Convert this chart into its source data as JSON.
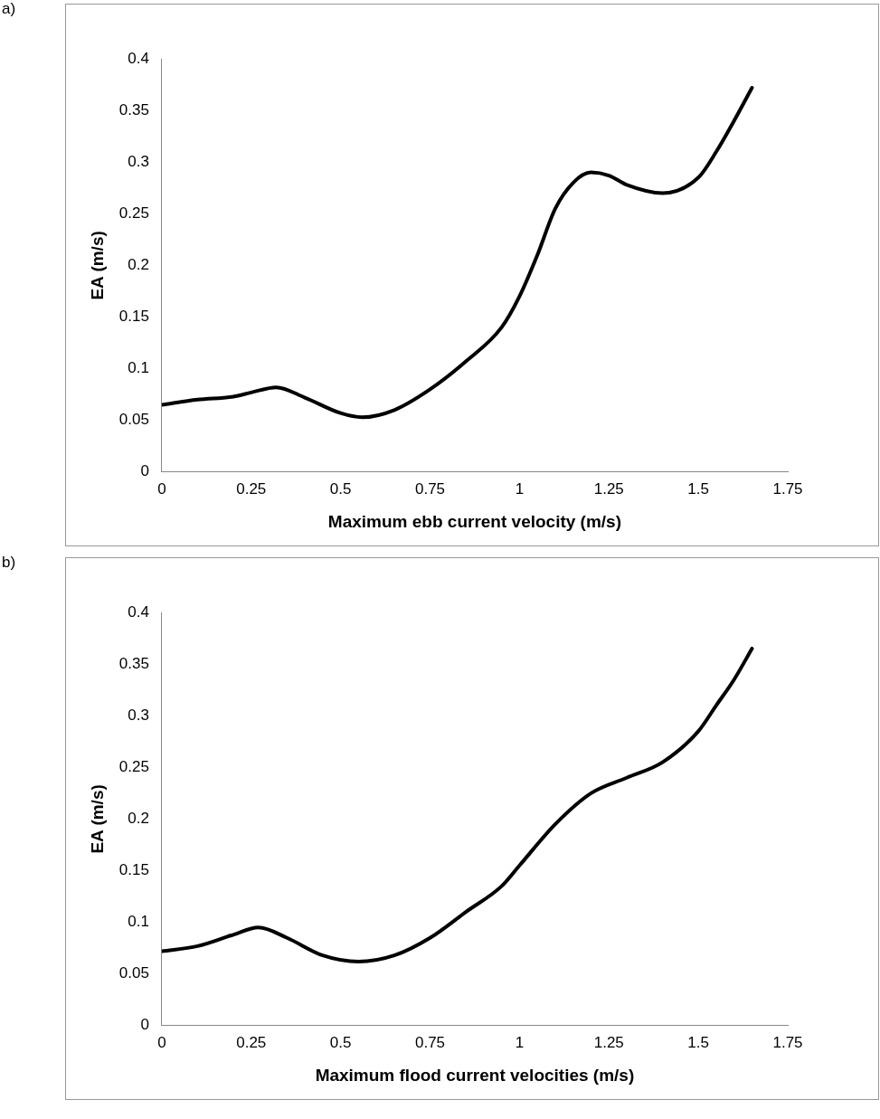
{
  "chart_data": [
    {
      "type": "line",
      "annotations": [
        "a)"
      ],
      "xlabel": "Maximum ebb current velocity (m/s)",
      "ylabel": "EA (m/s)",
      "series": [
        {
          "color": "#000000",
          "x": [
            0,
            0.1,
            0.2,
            0.25,
            0.32,
            0.4,
            0.5,
            0.56,
            0.65,
            0.75,
            0.85,
            0.95,
            1.0,
            1.05,
            1.1,
            1.15,
            1.2,
            1.25,
            1.3,
            1.4,
            1.5,
            1.55,
            1.6,
            1.65
          ],
          "values": [
            0.065,
            0.07,
            0.073,
            0.077,
            0.082,
            0.072,
            0.057,
            0.053,
            0.06,
            0.08,
            0.107,
            0.14,
            0.17,
            0.21,
            0.255,
            0.28,
            0.29,
            0.287,
            0.278,
            0.27,
            0.285,
            0.31,
            0.34,
            0.372
          ]
        }
      ],
      "xlim": [
        0,
        1.75
      ],
      "xticks": [
        0,
        0.25,
        0.5,
        0.75,
        1,
        1.25,
        1.5,
        1.75
      ],
      "ylim": [
        0,
        0.4
      ],
      "yticks": [
        0,
        0.05,
        0.1,
        0.15,
        0.2,
        0.25,
        0.3,
        0.35,
        0.4
      ],
      "grid": false,
      "legend": false,
      "marker": "none",
      "line_style": "solid"
    },
    {
      "type": "line",
      "annotations": [
        "b)"
      ],
      "xlabel": "Maximum flood current velocities (m/s)",
      "ylabel": "EA (m/s)",
      "series": [
        {
          "color": "#000000",
          "x": [
            0,
            0.1,
            0.2,
            0.27,
            0.35,
            0.45,
            0.55,
            0.65,
            0.75,
            0.85,
            0.95,
            1.0,
            1.1,
            1.2,
            1.3,
            1.4,
            1.5,
            1.55,
            1.6,
            1.65
          ],
          "values": [
            0.072,
            0.077,
            0.088,
            0.095,
            0.085,
            0.068,
            0.062,
            0.068,
            0.085,
            0.11,
            0.135,
            0.155,
            0.195,
            0.225,
            0.24,
            0.255,
            0.285,
            0.31,
            0.335,
            0.365
          ]
        }
      ],
      "xlim": [
        0,
        1.75
      ],
      "xticks": [
        0,
        0.25,
        0.5,
        0.75,
        1,
        1.25,
        1.5,
        1.75
      ],
      "ylim": [
        0,
        0.4
      ],
      "yticks": [
        0,
        0.05,
        0.1,
        0.15,
        0.2,
        0.25,
        0.3,
        0.35,
        0.4
      ],
      "grid": false,
      "legend": false,
      "marker": "none",
      "line_style": "solid"
    }
  ]
}
